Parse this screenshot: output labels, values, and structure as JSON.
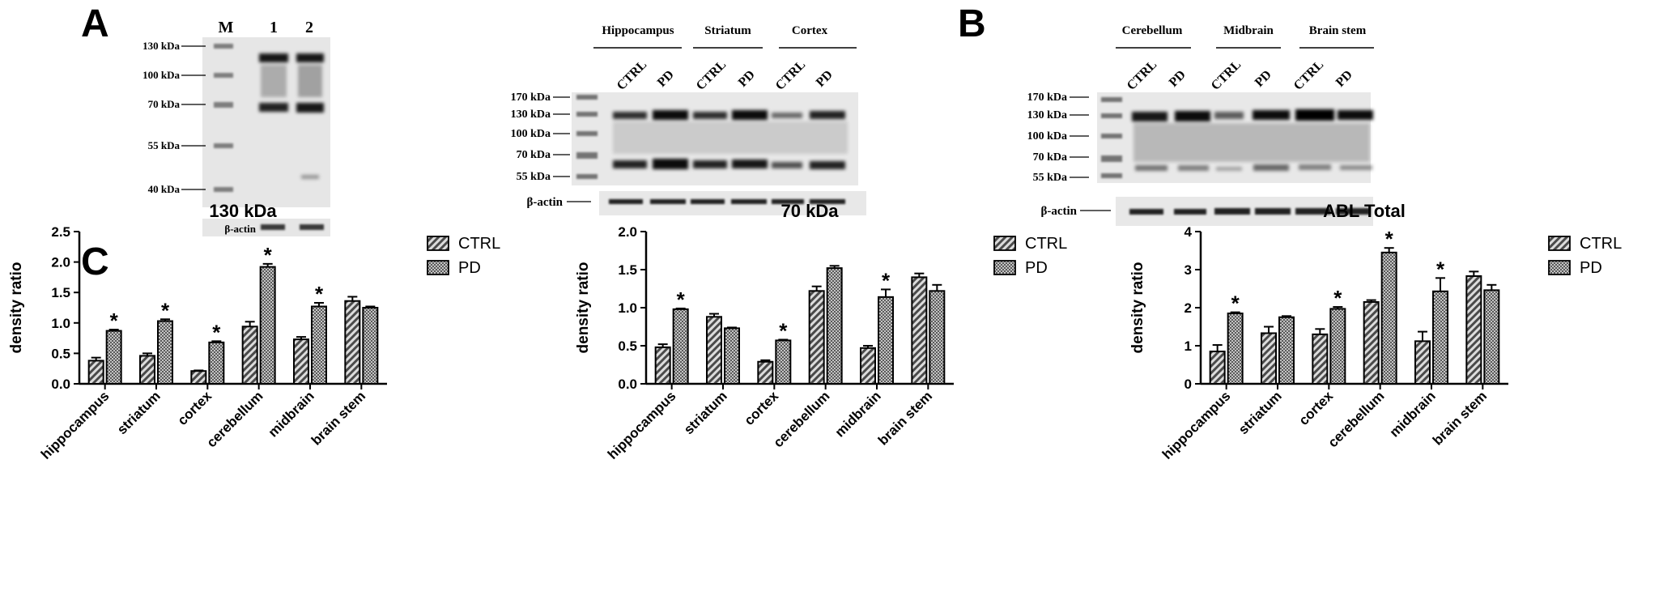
{
  "panel_labels": {
    "a": "A",
    "b": "B",
    "c": "C"
  },
  "blot_A_marker": {
    "lane_labels": [
      "M",
      "1",
      "2"
    ],
    "markers": [
      "130 kDa",
      "100 kDa",
      "70 kDa",
      "55 kDa",
      "40 kDa"
    ],
    "beta_actin": "β-actin"
  },
  "blot_A_regions": {
    "groups": [
      "Hippocampus",
      "Striatum",
      "Cortex"
    ],
    "lanes": [
      "CTRL",
      "PD",
      "CTRL",
      "PD",
      "CTRL",
      "PD"
    ],
    "markers": [
      "170 kDa",
      "130 kDa",
      "100 kDa",
      "70 kDa",
      "55 kDa"
    ],
    "beta_actin": "β-actin"
  },
  "blot_B": {
    "groups": [
      "Cerebellum",
      "Midbrain",
      "Brain stem"
    ],
    "lanes": [
      "CTRL",
      "PD",
      "CTRL",
      "PD",
      "CTRL",
      "PD"
    ],
    "markers": [
      "170 kDa",
      "130 kDa",
      "100 kDa",
      "70 kDa",
      "55 kDa"
    ],
    "beta_actin": "β-actin"
  },
  "colors": {
    "bar_fill": "#9a9a9a",
    "bar_stroke": "#000000",
    "text": "#000000"
  },
  "chart_data": [
    {
      "type": "bar",
      "title": "130 kDa",
      "ylabel": "density ratio",
      "xlabel": "",
      "categories": [
        "hippocampus",
        "striatum",
        "cortex",
        "cerebellum",
        "midbrain",
        "brain stem"
      ],
      "ylim": [
        0,
        2.5
      ],
      "yticks": [
        "0.0",
        "0.5",
        "1.0",
        "1.5",
        "2.0",
        "2.5"
      ],
      "series": [
        {
          "name": "CTRL",
          "values": [
            0.38,
            0.46,
            0.21,
            0.94,
            0.73,
            1.36
          ],
          "errors": [
            0.05,
            0.04,
            0.01,
            0.08,
            0.04,
            0.07
          ]
        },
        {
          "name": "PD",
          "values": [
            0.87,
            1.03,
            0.68,
            1.92,
            1.27,
            1.25
          ],
          "errors": [
            0.02,
            0.03,
            0.02,
            0.05,
            0.06,
            0.02
          ]
        }
      ],
      "significance": [
        {
          "category": "hippocampus",
          "series": "PD",
          "label": "*"
        },
        {
          "category": "striatum",
          "series": "PD",
          "label": "*"
        },
        {
          "category": "cortex",
          "series": "PD",
          "label": "*"
        },
        {
          "category": "cerebellum",
          "series": "PD",
          "label": "*"
        },
        {
          "category": "midbrain",
          "series": "PD",
          "label": "*"
        }
      ],
      "legend": "top-right",
      "grid": false
    },
    {
      "type": "bar",
      "title": "70 kDa",
      "ylabel": "density ratio",
      "xlabel": "",
      "categories": [
        "hippocampus",
        "striatum",
        "cortex",
        "cerebellum",
        "midbrain",
        "brain stem"
      ],
      "ylim": [
        0,
        2.0
      ],
      "yticks": [
        "0.0",
        "0.5",
        "1.0",
        "1.5",
        "2.0"
      ],
      "series": [
        {
          "name": "CTRL",
          "values": [
            0.48,
            0.88,
            0.29,
            1.22,
            0.47,
            1.4
          ],
          "errors": [
            0.04,
            0.04,
            0.02,
            0.06,
            0.03,
            0.05
          ]
        },
        {
          "name": "PD",
          "values": [
            0.98,
            0.73,
            0.57,
            1.52,
            1.14,
            1.22
          ],
          "errors": [
            0.01,
            0.01,
            0.01,
            0.03,
            0.1,
            0.08
          ]
        }
      ],
      "significance": [
        {
          "category": "hippocampus",
          "series": "PD",
          "label": "*"
        },
        {
          "category": "cortex",
          "series": "PD",
          "label": "*"
        },
        {
          "category": "midbrain",
          "series": "PD",
          "label": "*"
        }
      ],
      "legend": "top-right",
      "grid": false
    },
    {
      "type": "bar",
      "title": "ABL Total",
      "ylabel": "density ratio",
      "xlabel": "",
      "categories": [
        "hippocampus",
        "striatum",
        "cortex",
        "cerebellum",
        "midbrain",
        "brain stem"
      ],
      "ylim": [
        0,
        4
      ],
      "yticks": [
        "0",
        "1",
        "2",
        "3",
        "4"
      ],
      "series": [
        {
          "name": "CTRL",
          "values": [
            0.85,
            1.33,
            1.3,
            2.15,
            1.12,
            2.83
          ],
          "errors": [
            0.17,
            0.17,
            0.14,
            0.05,
            0.25,
            0.12
          ]
        },
        {
          "name": "PD",
          "values": [
            1.85,
            1.75,
            1.97,
            3.45,
            2.43,
            2.46
          ],
          "errors": [
            0.03,
            0.03,
            0.05,
            0.12,
            0.35,
            0.14
          ]
        }
      ],
      "significance": [
        {
          "category": "hippocampus",
          "series": "PD",
          "label": "*"
        },
        {
          "category": "cortex",
          "series": "PD",
          "label": "*"
        },
        {
          "category": "cerebellum",
          "series": "PD",
          "label": "*"
        },
        {
          "category": "midbrain",
          "series": "PD",
          "label": "*"
        }
      ],
      "legend": "top-right",
      "grid": false
    }
  ]
}
